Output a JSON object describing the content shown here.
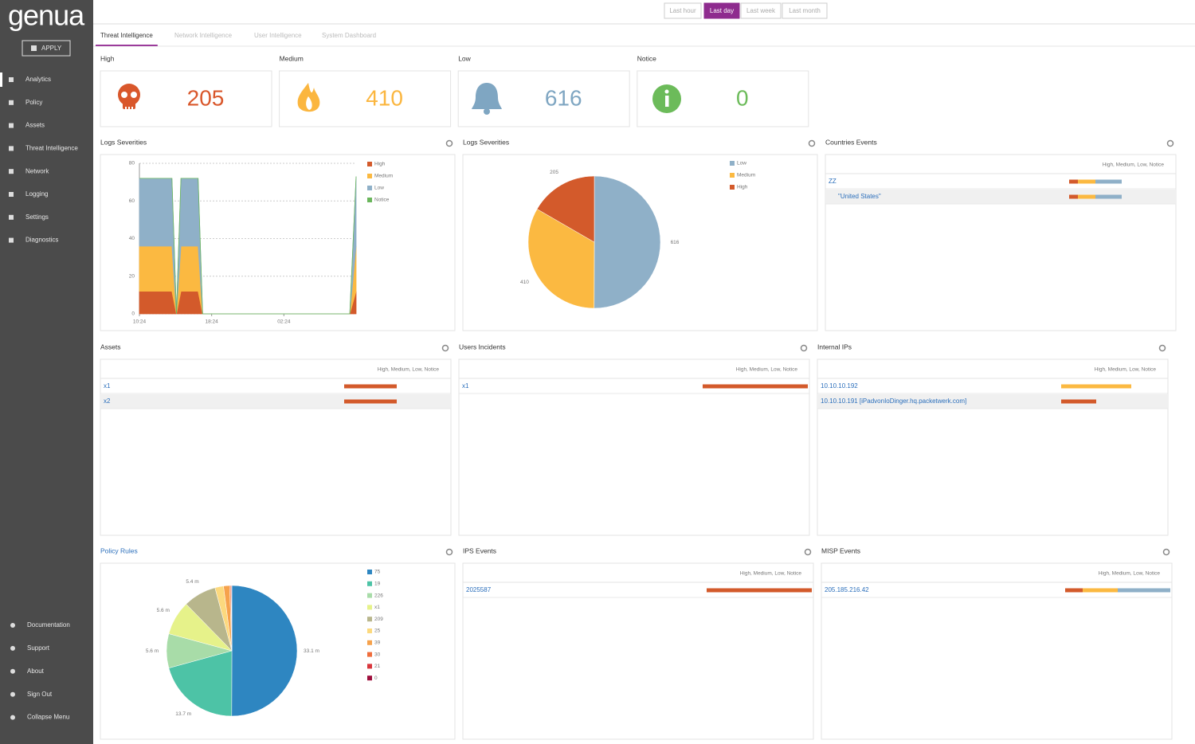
{
  "sidebar": {
    "logo": "genua",
    "apply": "APPLY",
    "nav": [
      "Analytics",
      "Policy",
      "Assets",
      "Threat Intelligence",
      "Network",
      "Logging",
      "Settings",
      "Diagnostics"
    ],
    "active": 0,
    "footer_nav": [
      "Documentation",
      "Support",
      "About",
      "Sign Out",
      "Collapse Menu"
    ]
  },
  "time_range": {
    "options": [
      "Last hour",
      "Last day",
      "Last week",
      "Last month"
    ],
    "active": 1
  },
  "tabs": {
    "items": [
      "Threat Intelligence",
      "Network Intelligence",
      "User Intelligence",
      "System Dashboard"
    ],
    "active": 0
  },
  "severity_cards": [
    {
      "label": "High",
      "value": 205,
      "color": "#d9572b"
    },
    {
      "label": "Medium",
      "value": 410,
      "color": "#fbb63f"
    },
    {
      "label": "Low",
      "value": 616,
      "color": "#7fa6c2"
    },
    {
      "label": "Notice",
      "value": 0,
      "color": "#6cbb5a"
    }
  ],
  "panels": [
    {
      "title": "Logs Severities",
      "type": "area",
      "x": [
        0,
        3.6,
        4.1,
        4.6,
        6.5,
        7.0,
        23.3,
        24
      ],
      "xlim": [
        0,
        24
      ],
      "xticks": [
        {
          "value": 0,
          "label": "10:24"
        },
        {
          "value": 8,
          "label": "18:24"
        },
        {
          "value": 16,
          "label": "02:24"
        }
      ],
      "ylim": [
        0,
        80
      ],
      "yticks": [
        0,
        20,
        40,
        60,
        80
      ],
      "grid": true,
      "series": [
        {
          "name": "High",
          "color": "#d35a2b",
          "values": [
            12,
            12,
            0,
            12,
            12,
            0,
            0,
            12
          ]
        },
        {
          "name": "Medium",
          "color": "#fbb941",
          "values": [
            24,
            24,
            0,
            24,
            24,
            0,
            0,
            24
          ]
        },
        {
          "name": "Low",
          "color": "#8fb0c8",
          "values": [
            36,
            36,
            0,
            36,
            36,
            0,
            0,
            37
          ]
        },
        {
          "name": "Notice",
          "color": "#6ab65c",
          "values": [
            0,
            0,
            0,
            0,
            0,
            0,
            0,
            0
          ]
        }
      ]
    },
    {
      "title": "Logs Severities",
      "type": "pie",
      "categories": [
        "Low",
        "Medium",
        "High"
      ],
      "values": [
        616,
        410,
        205
      ],
      "colors": [
        "#8fb0c8",
        "#fbb941",
        "#d35a2b"
      ]
    },
    {
      "title": "Countries Events",
      "type": "table",
      "header": "High, Medium, Low, Notice",
      "colors": [
        "#d35a2b",
        "#fbb941",
        "#8fb0c8",
        "#6ab65c"
      ],
      "xlim": [
        0,
        12
      ],
      "rows": [
        {
          "label": "ZZ",
          "values": [
            1,
            2,
            3,
            0
          ]
        },
        {
          "label": "\"United States\"",
          "values": [
            1,
            2,
            3,
            0
          ]
        }
      ]
    },
    {
      "title": "Assets",
      "type": "table",
      "header": "High, Medium, Low, Notice",
      "colors": [
        "#d35a2b",
        "#fbb941",
        "#8fb0c8",
        "#6ab65c"
      ],
      "xlim": [
        0,
        4
      ],
      "rows": [
        {
          "label": "x1",
          "values": [
            2,
            0,
            0,
            0
          ]
        },
        {
          "label": "x2",
          "values": [
            2,
            0,
            0,
            0
          ]
        }
      ]
    },
    {
      "title": "Users Incidents",
      "type": "table",
      "header": "High, Medium, Low, Notice",
      "colors": [
        "#d35a2b",
        "#fbb941",
        "#8fb0c8",
        "#6ab65c"
      ],
      "xlim": [
        0,
        4
      ],
      "rows": [
        {
          "label": "x1",
          "values": [
            4,
            0,
            0,
            0
          ]
        }
      ]
    },
    {
      "title": "Internal IPs",
      "type": "table",
      "header": "High, Medium, Low, Notice",
      "colors": [
        "#d35a2b",
        "#fbb941",
        "#8fb0c8",
        "#6ab65c"
      ],
      "xlim": [
        0,
        6
      ],
      "rows": [
        {
          "label": "10.10.10.192",
          "values": [
            0,
            4,
            0,
            0
          ]
        },
        {
          "label": "10.10.10.191 [iPadvonIoDinger.hq.packetwerk.com]",
          "values": [
            2,
            0,
            0,
            0
          ]
        }
      ]
    },
    {
      "title": "Policy Rules",
      "link": true,
      "type": "pie",
      "categories": [
        "75",
        "19",
        "226",
        "x1",
        "209",
        "25",
        "39",
        "30",
        "21",
        "0"
      ],
      "values": [
        33.1,
        13.7,
        5.6,
        5.6,
        5.4,
        1.4,
        1.0,
        0.2,
        0.1,
        0.05
      ],
      "value_labels": [
        "33.1 m",
        "13.7 m",
        "5.6 m",
        "5.6 m",
        "5.4 m",
        null,
        null,
        null,
        null,
        null
      ],
      "colors": [
        "#2e86c1",
        "#4dc3a6",
        "#a8dca8",
        "#e6f28a",
        "#b8b68c",
        "#fcd97e",
        "#f6a24c",
        "#ef6d3c",
        "#d8363c",
        "#9e0e3c"
      ]
    },
    {
      "title": "IPS Events",
      "type": "table",
      "header": "High, Medium, Low, Notice",
      "colors": [
        "#d35a2b",
        "#fbb941",
        "#8fb0c8",
        "#6ab65c"
      ],
      "xlim": [
        0,
        1
      ],
      "rows": [
        {
          "label": "2025587",
          "values": [
            1,
            0,
            0,
            0
          ]
        }
      ]
    },
    {
      "title": "MISP Events",
      "type": "table",
      "header": "High, Medium, Low, Notice",
      "colors": [
        "#d35a2b",
        "#fbb941",
        "#8fb0c8",
        "#6ab65c"
      ],
      "xlim": [
        0,
        6
      ],
      "rows": [
        {
          "label": "205.185.216.42",
          "values": [
            1,
            2,
            3,
            0
          ]
        }
      ]
    }
  ]
}
